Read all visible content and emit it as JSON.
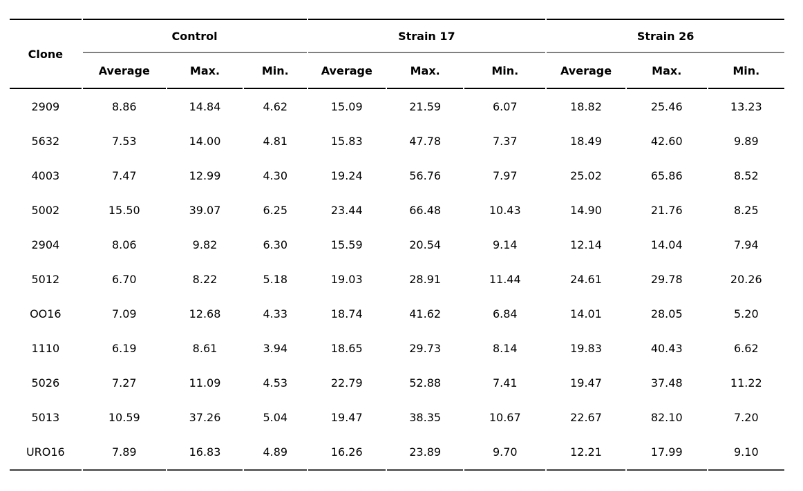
{
  "table": {
    "corner_header": "Clone",
    "group_headers": [
      "Control",
      "Strain 17",
      "Strain 26"
    ],
    "sub_headers": [
      "Average",
      "Max.",
      "Min."
    ],
    "rows": [
      {
        "clone": "2909",
        "values": [
          "8.86",
          "14.84",
          "4.62",
          "15.09",
          "21.59",
          "6.07",
          "18.82",
          "25.46",
          "13.23"
        ]
      },
      {
        "clone": "5632",
        "values": [
          "7.53",
          "14.00",
          "4.81",
          "15.83",
          "47.78",
          "7.37",
          "18.49",
          "42.60",
          "9.89"
        ]
      },
      {
        "clone": "4003",
        "values": [
          "7.47",
          "12.99",
          "4.30",
          "19.24",
          "56.76",
          "7.97",
          "25.02",
          "65.86",
          "8.52"
        ]
      },
      {
        "clone": "5002",
        "values": [
          "15.50",
          "39.07",
          "6.25",
          "23.44",
          "66.48",
          "10.43",
          "14.90",
          "21.76",
          "8.25"
        ]
      },
      {
        "clone": "2904",
        "values": [
          "8.06",
          "9.82",
          "6.30",
          "15.59",
          "20.54",
          "9.14",
          "12.14",
          "14.04",
          "7.94"
        ]
      },
      {
        "clone": "5012",
        "values": [
          "6.70",
          "8.22",
          "5.18",
          "19.03",
          "28.91",
          "11.44",
          "24.61",
          "29.78",
          "20.26"
        ]
      },
      {
        "clone": "OO16",
        "values": [
          "7.09",
          "12.68",
          "4.33",
          "18.74",
          "41.62",
          "6.84",
          "14.01",
          "28.05",
          "5.20"
        ]
      },
      {
        "clone": "1110",
        "values": [
          "6.19",
          "8.61",
          "3.94",
          "18.65",
          "29.73",
          "8.14",
          "19.83",
          "40.43",
          "6.62"
        ]
      },
      {
        "clone": "5026",
        "values": [
          "7.27",
          "11.09",
          "4.53",
          "22.79",
          "52.88",
          "7.41",
          "19.47",
          "37.48",
          "11.22"
        ]
      },
      {
        "clone": "5013",
        "values": [
          "10.59",
          "37.26",
          "5.04",
          "19.47",
          "38.35",
          "10.67",
          "22.67",
          "82.10",
          "7.20"
        ]
      },
      {
        "clone": "URO16",
        "values": [
          "7.89",
          "16.83",
          "4.89",
          "16.26",
          "23.89",
          "9.70",
          "12.21",
          "17.99",
          "9.10"
        ]
      }
    ],
    "colors": {
      "background": "#ffffff",
      "text": "#000000",
      "rule_heavy": "#000000",
      "rule_group": "#808080",
      "rule_bottom": "#666666"
    }
  }
}
